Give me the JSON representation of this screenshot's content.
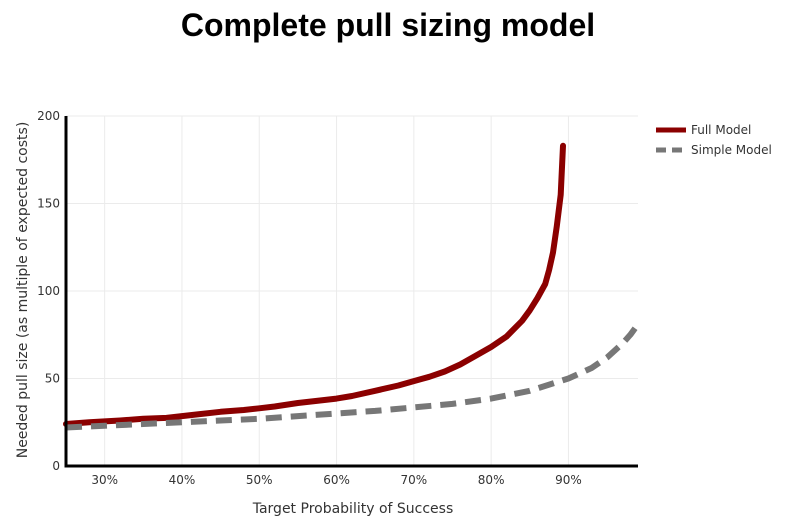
{
  "chart_data": {
    "type": "line",
    "title": "Complete pull sizing model",
    "xlabel": "Target Probability of Success",
    "ylabel": "Needed pull size (as multiple of expected costs)",
    "xlim": [
      0.25,
      0.99
    ],
    "ylim": [
      0,
      200
    ],
    "x_ticks": [
      0.3,
      0.4,
      0.5,
      0.6,
      0.7,
      0.8,
      0.9
    ],
    "x_tick_labels": [
      "30%",
      "40%",
      "50%",
      "60%",
      "70%",
      "80%",
      "90%"
    ],
    "y_ticks": [
      0,
      50,
      100,
      150,
      200
    ],
    "y_tick_labels": [
      "0",
      "50",
      "100",
      "150",
      "200"
    ],
    "grid": true,
    "legend_position": "top-right",
    "series": [
      {
        "name": "Full Model",
        "color": "#8b0000",
        "style": "solid",
        "x": [
          0.25,
          0.28,
          0.3,
          0.32,
          0.35,
          0.38,
          0.4,
          0.42,
          0.45,
          0.48,
          0.5,
          0.52,
          0.55,
          0.58,
          0.6,
          0.62,
          0.65,
          0.68,
          0.7,
          0.72,
          0.74,
          0.76,
          0.78,
          0.8,
          0.82,
          0.84,
          0.85,
          0.86,
          0.87,
          0.875,
          0.88,
          0.885,
          0.89,
          0.893
        ],
        "y": [
          24,
          25,
          25.5,
          26,
          27,
          27.5,
          28.5,
          29.5,
          31,
          32,
          33,
          34,
          36,
          37.5,
          38.5,
          40,
          43,
          46,
          48.5,
          51,
          54,
          58,
          63,
          68,
          74,
          83,
          89,
          96,
          104,
          112,
          122,
          137,
          155,
          183
        ]
      },
      {
        "name": "Simple Model",
        "color": "#777777",
        "style": "dash",
        "x": [
          0.25,
          0.3,
          0.35,
          0.4,
          0.45,
          0.5,
          0.55,
          0.6,
          0.65,
          0.7,
          0.75,
          0.8,
          0.85,
          0.9,
          0.93,
          0.95,
          0.97,
          0.98,
          0.99
        ],
        "y": [
          22,
          23,
          24,
          25,
          26,
          27,
          28.5,
          30,
          31.5,
          33.5,
          35.5,
          38.5,
          43,
          50,
          56,
          62,
          70,
          75,
          81
        ]
      }
    ]
  }
}
